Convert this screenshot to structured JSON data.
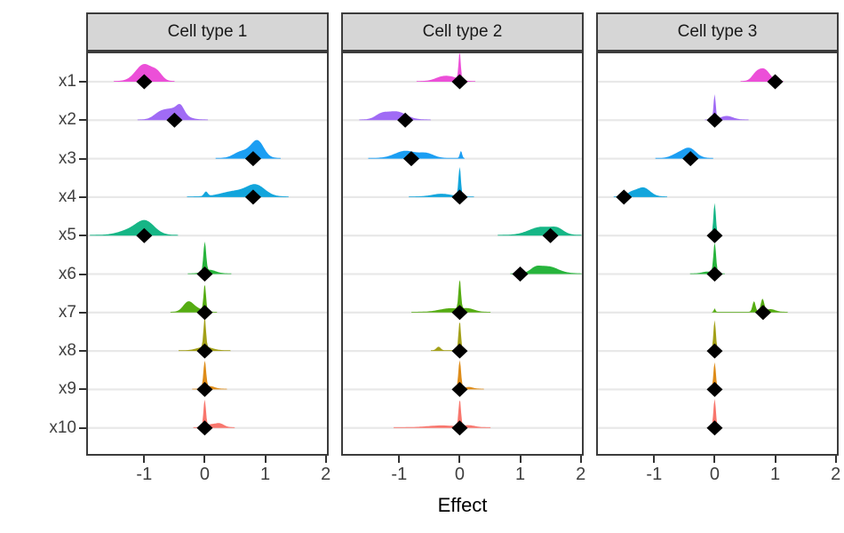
{
  "style": {
    "background": "#FFFFFF",
    "strip_bg": "#D6D6D6",
    "panel_border": "#3C3C3C",
    "gridline": "#E8E8E8",
    "tick": "#333333",
    "axis_text": "#404040",
    "strip_text": "#1A1A1A",
    "marker_color": "#000000"
  },
  "chart_data": {
    "type": "ridgeline",
    "title": "",
    "xlabel": "Effect",
    "ylabel": "",
    "x_range": [
      -1.93,
      2.02
    ],
    "x_tick_values": [
      -1,
      0,
      1,
      2
    ],
    "x_tick_labels": [
      "-1",
      "0",
      "1",
      "2"
    ],
    "y_categories": [
      "x1",
      "x2",
      "x3",
      "x4",
      "x5",
      "x6",
      "x7",
      "x8",
      "x9",
      "x10"
    ],
    "colors": [
      "#EC4FD8",
      "#A06BF5",
      "#1B9EF3",
      "#12A5DC",
      "#16B686",
      "#27B43C",
      "#55AC12",
      "#A3A018",
      "#DE8C19",
      "#F8766D"
    ],
    "point_marker": "diamond",
    "legend": "none",
    "grid": "horizontal-major-only",
    "panels": [
      {
        "label": "Cell type 1",
        "estimates": [
          -1.0,
          -0.5,
          0.8,
          0.8,
          -1.0,
          0.0,
          0.0,
          0.0,
          0.0,
          0.0
        ],
        "densities": [
          [
            [
              -1.0,
              0.14,
              19
            ],
            [
              -0.78,
              0.08,
              7
            ]
          ],
          [
            [
              -0.52,
              0.16,
              12
            ],
            [
              -0.4,
              0.06,
              8
            ],
            [
              -0.75,
              0.1,
              5
            ]
          ],
          [
            [
              0.88,
              0.1,
              16
            ],
            [
              0.72,
              0.15,
              7
            ],
            [
              0.55,
              0.1,
              3
            ]
          ],
          [
            [
              0.85,
              0.15,
              12
            ],
            [
              0.5,
              0.22,
              6
            ],
            [
              0.02,
              0.03,
              5
            ]
          ],
          [
            [
              -0.98,
              0.15,
              15
            ],
            [
              -1.25,
              0.18,
              5
            ]
          ],
          [
            [
              0.0,
              0.022,
              33
            ],
            [
              0.08,
              0.1,
              4
            ]
          ],
          [
            [
              0.0,
              0.02,
              30
            ],
            [
              -0.28,
              0.08,
              10
            ],
            [
              -0.15,
              0.1,
              4
            ]
          ],
          [
            [
              0.0,
              0.02,
              33
            ],
            [
              0.0,
              0.12,
              4
            ]
          ],
          [
            [
              0.0,
              0.022,
              30
            ],
            [
              0.08,
              0.08,
              3
            ]
          ],
          [
            [
              0.0,
              0.02,
              30
            ],
            [
              0.25,
              0.07,
              4
            ],
            [
              0.1,
              0.08,
              3
            ]
          ]
        ]
      },
      {
        "label": "Cell type 2",
        "estimates": [
          0.0,
          -0.9,
          -0.8,
          0.0,
          1.5,
          1.0,
          0.0,
          0.0,
          0.0,
          0.0
        ],
        "densities": [
          [
            [
              0.0,
              0.018,
              31
            ],
            [
              -0.28,
              0.12,
              5
            ],
            [
              -0.1,
              0.1,
              3
            ]
          ],
          [
            [
              -1.05,
              0.16,
              9
            ],
            [
              -1.3,
              0.1,
              5
            ]
          ],
          [
            [
              -0.9,
              0.17,
              8
            ],
            [
              -0.55,
              0.12,
              5
            ],
            [
              0.02,
              0.018,
              8
            ]
          ],
          [
            [
              0.0,
              0.02,
              33
            ],
            [
              -0.3,
              0.15,
              3
            ]
          ],
          [
            [
              1.35,
              0.2,
              9
            ],
            [
              1.62,
              0.1,
              5
            ]
          ],
          [
            [
              1.45,
              0.17,
              8
            ],
            [
              1.25,
              0.08,
              4
            ]
          ],
          [
            [
              0.0,
              0.02,
              33
            ],
            [
              -0.15,
              0.18,
              4
            ],
            [
              0.15,
              0.1,
              3
            ]
          ],
          [
            [
              0.0,
              0.02,
              33
            ],
            [
              -0.35,
              0.035,
              4
            ]
          ],
          [
            [
              0.0,
              0.022,
              32
            ],
            [
              0.15,
              0.07,
              2
            ]
          ],
          [
            [
              0.0,
              0.02,
              30
            ],
            [
              -0.3,
              0.22,
              2
            ],
            [
              0.15,
              0.1,
              2
            ]
          ]
        ]
      },
      {
        "label": "Cell type 3",
        "estimates": [
          1.0,
          0.0,
          -0.4,
          -1.5,
          0.0,
          0.0,
          0.8,
          0.0,
          0.0,
          0.0
        ],
        "densities": [
          [
            [
              0.82,
              0.09,
              13
            ],
            [
              0.68,
              0.07,
              7
            ]
          ],
          [
            [
              0.0,
              0.018,
              28
            ],
            [
              0.2,
              0.1,
              4
            ]
          ],
          [
            [
              -0.42,
              0.11,
              11
            ],
            [
              -0.62,
              0.1,
              4
            ]
          ],
          [
            [
              -1.18,
              0.11,
              10
            ],
            [
              -1.38,
              0.08,
              4
            ]
          ],
          [
            [
              0.0,
              0.02,
              36
            ]
          ],
          [
            [
              0.0,
              0.022,
              34
            ],
            [
              -0.12,
              0.08,
              2
            ]
          ],
          [
            [
              0.65,
              0.025,
              12
            ],
            [
              0.79,
              0.028,
              14
            ],
            [
              0.92,
              0.08,
              3
            ],
            [
              0.0,
              0.012,
              4
            ]
          ],
          [
            [
              0.0,
              0.02,
              34
            ]
          ],
          [
            [
              0.0,
              0.02,
              30
            ]
          ],
          [
            [
              0.0,
              0.02,
              32
            ]
          ]
        ]
      }
    ]
  }
}
